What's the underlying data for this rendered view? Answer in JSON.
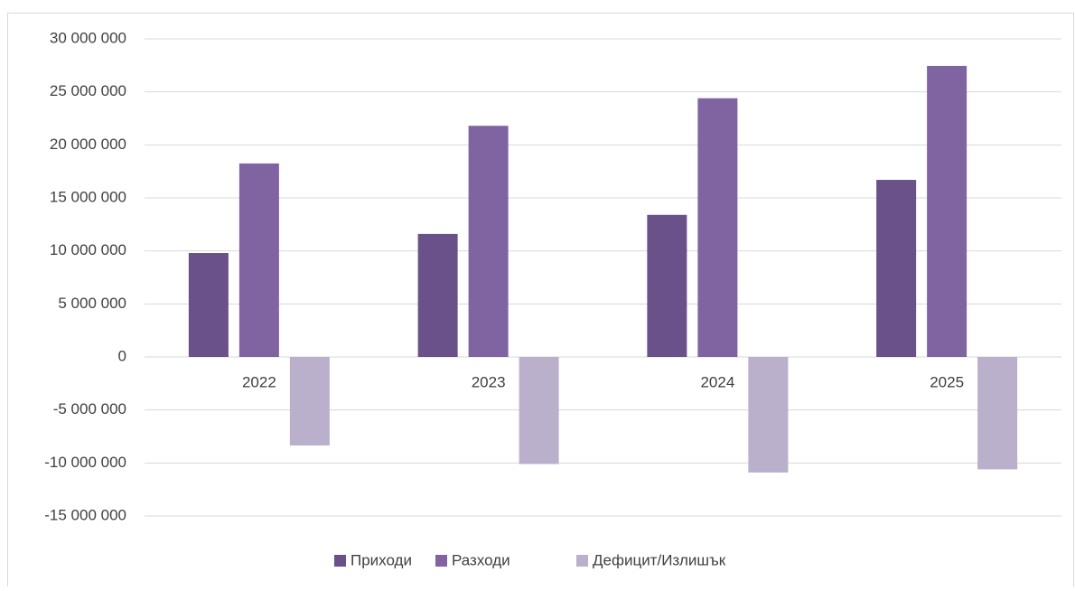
{
  "chart_data": {
    "type": "bar",
    "categories": [
      "2022",
      "2023",
      "2024",
      "2025"
    ],
    "series": [
      {
        "name": "Приходи",
        "color": "#6a5189",
        "values": [
          9800000,
          11600000,
          13400000,
          16700000
        ]
      },
      {
        "name": "Разходи",
        "color": "#8064a2",
        "values": [
          18250000,
          21800000,
          24400000,
          27450000
        ]
      },
      {
        "name": "Дефицит/Излишък",
        "color": "#bab0cb",
        "values": [
          -8350000,
          -10100000,
          -10900000,
          -10600000
        ]
      }
    ],
    "ylim": [
      -15000000,
      30000000
    ],
    "yticks": [
      {
        "value": -15000000,
        "label": "-15 000 000"
      },
      {
        "value": -10000000,
        "label": "-10 000 000"
      },
      {
        "value": -5000000,
        "label": "-5 000 000"
      },
      0,
      {
        "value": 5000000,
        "label": "5 000 000"
      },
      {
        "value": 10000000,
        "label": "10 000 000"
      },
      {
        "value": 15000000,
        "label": "15 000 000"
      },
      {
        "value": 20000000,
        "label": "20 000 000"
      },
      {
        "value": 25000000,
        "label": "25 000 000"
      },
      {
        "value": 30000000,
        "label": "30 000 000"
      }
    ],
    "grid": true,
    "legend": "bottom"
  }
}
